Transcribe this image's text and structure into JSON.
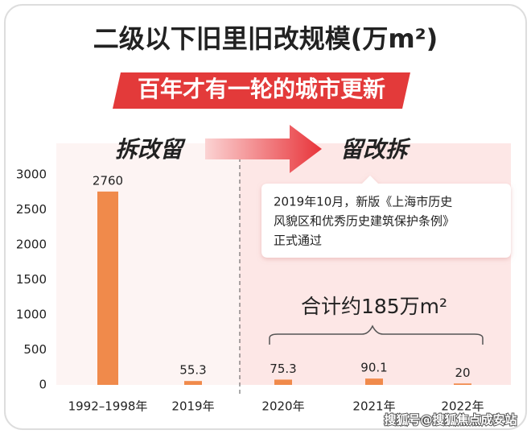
{
  "title": "二级以下旧里旧改规模(万m²)",
  "subtitle": "百年才有一轮的城市更新",
  "chart_data": {
    "type": "bar",
    "categories": [
      "1992–1998年",
      "2019年",
      "2020年",
      "2021年",
      "2022年"
    ],
    "values": [
      2760,
      55.3,
      75.3,
      90.1,
      20
    ],
    "color": "#f08a4b",
    "ylim": [
      0,
      3400
    ],
    "yticks": [
      0,
      500,
      1000,
      1500,
      2000,
      2500,
      3000
    ],
    "phase_labels": [
      "拆改留",
      "留改拆"
    ],
    "annotation": [
      "2019年10月，新版《上海市历史",
      "风貌区和优秀历史建筑保护条例》",
      "正式通过"
    ],
    "total_label": "合计约185万m²"
  },
  "watermark": "搜狐号@搜狐焦点成安站"
}
